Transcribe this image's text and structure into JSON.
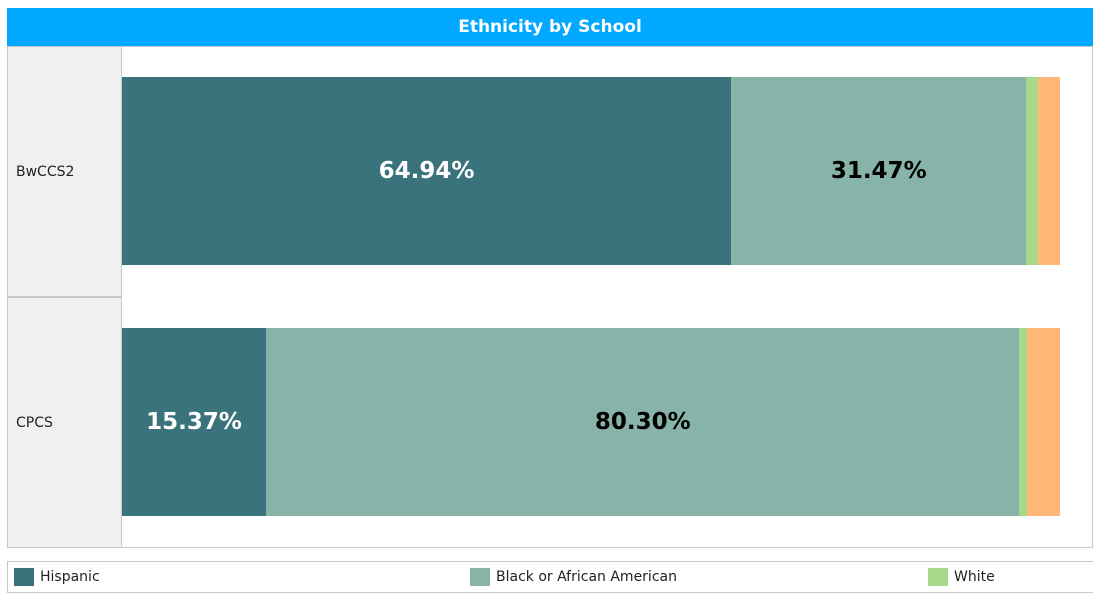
{
  "chart_data": {
    "type": "bar",
    "orientation": "horizontal",
    "stacked": true,
    "normalized": true,
    "title": "Ethnicity by School",
    "categories": [
      "BwCCS2",
      "CPCS"
    ],
    "series": [
      {
        "name": "Hispanic",
        "values": [
          64.94,
          15.37
        ],
        "color": "#3a737b",
        "label_color": "#ffffff"
      },
      {
        "name": "Black or African American",
        "values": [
          31.47,
          80.3
        ],
        "color": "#87b3a9",
        "label_color": "#000000"
      },
      {
        "name": "White",
        "values": [
          1.2,
          0.8
        ],
        "color": "#a8d88a",
        "label_color": "#000000"
      },
      {
        "values": [
          2.39,
          3.53
        ],
        "color": "#ffb877",
        "label_color": "#000000"
      }
    ],
    "data_labels": [
      [
        "64.94%",
        "31.47%",
        "",
        ""
      ],
      [
        "15.37%",
        "80.30%",
        "",
        ""
      ]
    ],
    "legend_position": "bottom",
    "grid": false
  }
}
